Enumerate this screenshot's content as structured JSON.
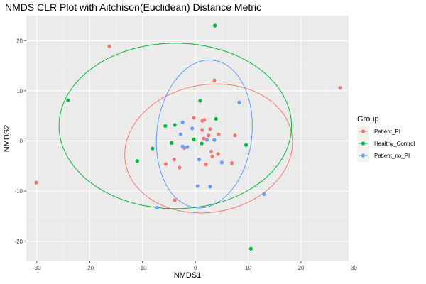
{
  "chart_data": {
    "type": "scatter",
    "title": "NMDS CLR Plot with Aitchison(Euclidean) Distance Metric",
    "xlabel": "NMDS1",
    "ylabel": "NMDS2",
    "xlim": [
      -32,
      29
    ],
    "ylim": [
      -24,
      25
    ],
    "x_ticks": [
      -30,
      -20,
      -10,
      0,
      10,
      20,
      30
    ],
    "y_ticks": [
      -20,
      -10,
      0,
      10,
      20
    ],
    "x_tick_labels": [
      "-30",
      "-20",
      "-10",
      "0",
      "10",
      "20",
      "30"
    ],
    "y_tick_labels": [
      "-20",
      "-10",
      "0",
      "10",
      "20"
    ],
    "grid": true,
    "legend_position": "right",
    "legend_title": "Group",
    "series": [
      {
        "name": "Patient_PI",
        "color": "#F8766D",
        "points": [
          [
            -16.3,
            18.9
          ],
          [
            27.4,
            10.6
          ],
          [
            -30.1,
            -8.3
          ],
          [
            3.6,
            12.1
          ],
          [
            -0.3,
            4.6
          ],
          [
            1.3,
            4.0
          ],
          [
            1.7,
            4.2
          ],
          [
            -5.6,
            -4.6
          ],
          [
            -4.0,
            -3.7
          ],
          [
            -3.0,
            -5.3
          ],
          [
            -2.1,
            -1.4
          ],
          [
            1.3,
            2.2
          ],
          [
            2.8,
            2.4
          ],
          [
            1.6,
            0.5
          ],
          [
            2.5,
            1.1
          ],
          [
            4.4,
            1.3
          ],
          [
            3.0,
            -2.1
          ],
          [
            3.2,
            -3.1
          ],
          [
            4.3,
            -2.6
          ],
          [
            2.0,
            -4.7
          ],
          [
            6.9,
            -4.4
          ],
          [
            7.5,
            1.1
          ],
          [
            -3.9,
            -11.8
          ]
        ]
      },
      {
        "name": "Healthy_Control",
        "color": "#00BA38",
        "points": [
          [
            3.7,
            23.0
          ],
          [
            -24.1,
            8.1
          ],
          [
            -11.0,
            -4.0
          ],
          [
            -8.1,
            -1.5
          ],
          [
            -4.5,
            -0.4
          ],
          [
            -5.7,
            3.0
          ],
          [
            -3.9,
            3.2
          ],
          [
            0.9,
            8.0
          ],
          [
            3.9,
            4.4
          ],
          [
            -0.3,
            0.3
          ],
          [
            1.2,
            -0.5
          ],
          [
            9.6,
            -0.8
          ],
          [
            10.5,
            -21.5
          ]
        ]
      },
      {
        "name": "Patient_no_PI",
        "color": "#619CFF",
        "points": [
          [
            -7.2,
            -13.3
          ],
          [
            -2.4,
            3.7
          ],
          [
            -0.6,
            2.5
          ],
          [
            -2.8,
            1.3
          ],
          [
            -2.4,
            -1.1
          ],
          [
            -1.5,
            -1.2
          ],
          [
            2.2,
            0.2
          ],
          [
            3.6,
            0.2
          ],
          [
            8.3,
            7.7
          ],
          [
            0.7,
            -3.7
          ],
          [
            5.0,
            -4.3
          ],
          [
            0.4,
            -9.0
          ],
          [
            2.8,
            -9.1
          ],
          [
            13.0,
            -10.6
          ]
        ]
      }
    ],
    "ellipses": [
      {
        "group": "Patient_PI",
        "cx": 2.5,
        "cy": -1.5,
        "rx": 16.0,
        "ry": 12.7,
        "angle_deg": 12
      },
      {
        "group": "Patient_no_PI",
        "cx": 1.7,
        "cy": 1.4,
        "rx": 9.0,
        "ry": 14.8,
        "angle_deg": -6
      },
      {
        "group": "Healthy_Control",
        "cx": -3.8,
        "cy": 3.0,
        "rx": 22.0,
        "ry": 16.5,
        "angle_deg": 0
      }
    ]
  }
}
